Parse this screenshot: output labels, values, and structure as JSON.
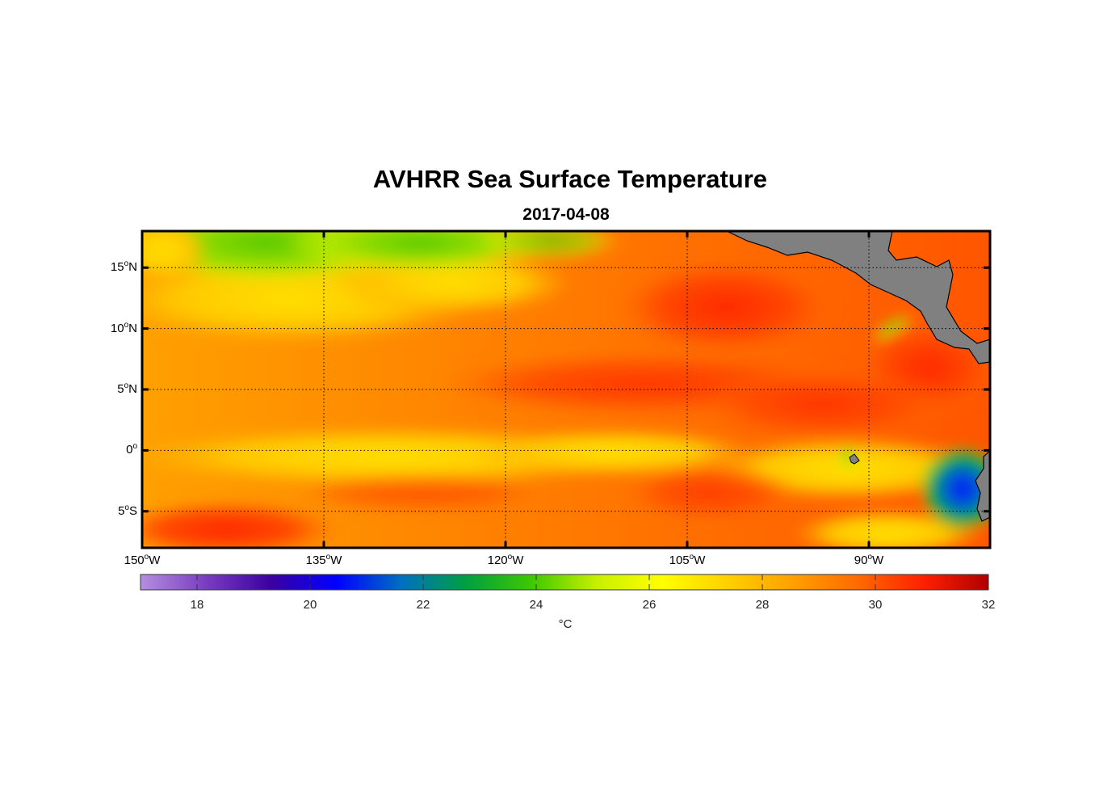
{
  "title": "AVHRR Sea Surface Temperature",
  "subtitle": "2017-04-08",
  "map": {
    "lon_range": [
      -150,
      -80
    ],
    "lat_range": [
      -8,
      18
    ],
    "lat_labels": [
      {
        "value": 15,
        "text": "15",
        "suffix": "N"
      },
      {
        "value": 10,
        "text": "10",
        "suffix": "N"
      },
      {
        "value": 5,
        "text": "5",
        "suffix": "N"
      },
      {
        "value": 0,
        "text": "0",
        "suffix": ""
      },
      {
        "value": -5,
        "text": "5",
        "suffix": "S"
      }
    ],
    "lon_labels": [
      {
        "value": -150,
        "text": "150",
        "suffix": "W"
      },
      {
        "value": -135,
        "text": "135",
        "suffix": "W"
      },
      {
        "value": -120,
        "text": "120",
        "suffix": "W"
      },
      {
        "value": -105,
        "text": "105",
        "suffix": "W"
      },
      {
        "value": -90,
        "text": "90",
        "suffix": "W"
      }
    ],
    "land_color": "#808080",
    "ocean_base_color": "#ffa500"
  },
  "colorbar": {
    "min": 17,
    "max": 32,
    "ticks": [
      "18",
      "20",
      "22",
      "24",
      "26",
      "28",
      "30",
      "32"
    ],
    "unit": "°C",
    "stops": [
      "#b48ee0",
      "#7a3dc0",
      "#3b00a0",
      "#0000ff",
      "#0070c0",
      "#00a040",
      "#40c800",
      "#c8f000",
      "#ffff00",
      "#ffd000",
      "#ffa000",
      "#ff6a00",
      "#ff2000",
      "#b00000"
    ]
  }
}
